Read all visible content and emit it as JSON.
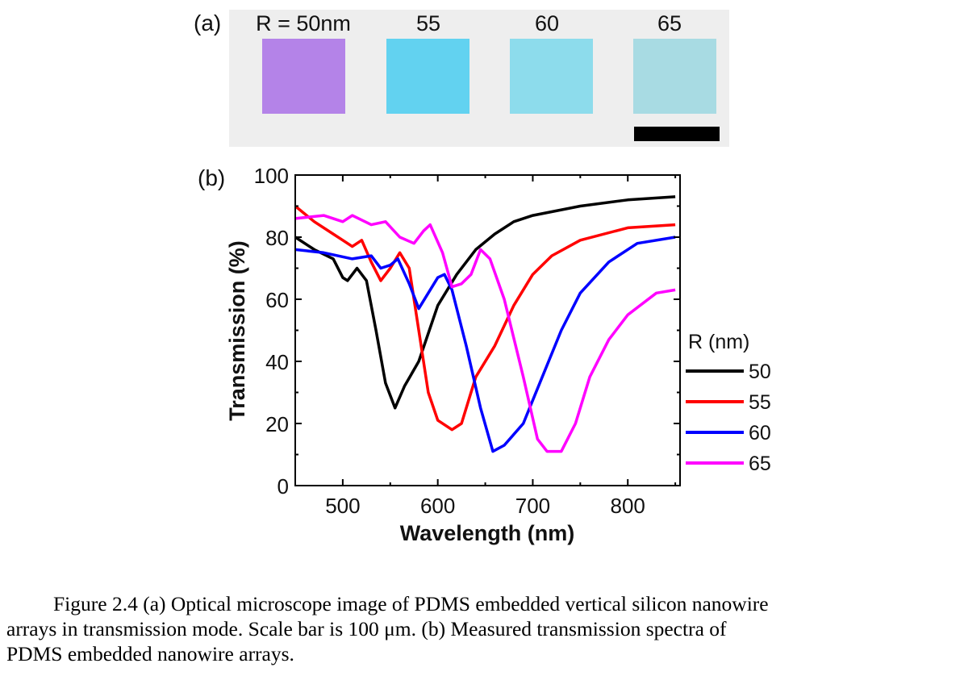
{
  "panel_a": {
    "label": "(a)",
    "sample_labels": [
      "R = 50nm",
      "55",
      "60",
      "65"
    ],
    "sample_colors": [
      "#b483e8",
      "#62d2f0",
      "#8ddcec",
      "#a8dbe3"
    ],
    "background_color": "#eeeeee"
  },
  "panel_b": {
    "label": "(b)"
  },
  "chart_data": {
    "type": "line",
    "xlabel": "Wavelength (nm)",
    "ylabel": "Transmission (%)",
    "xlim": [
      450,
      855
    ],
    "ylim": [
      0,
      100
    ],
    "xticks": [
      500,
      600,
      700,
      800
    ],
    "yticks": [
      0,
      20,
      40,
      60,
      80,
      100
    ],
    "grid": false,
    "legend_title": "R (nm)",
    "legend_position": "right",
    "series": [
      {
        "name": "50",
        "color": "#000000",
        "x": [
          450,
          470,
          490,
          500,
          505,
          515,
          525,
          535,
          545,
          555,
          565,
          580,
          600,
          620,
          640,
          660,
          680,
          700,
          750,
          800,
          850
        ],
        "y": [
          80,
          76,
          73,
          67,
          66,
          70,
          66,
          50,
          33,
          25,
          32,
          40,
          58,
          68,
          76,
          81,
          85,
          87,
          90,
          92,
          93
        ]
      },
      {
        "name": "55",
        "color": "#ff0000",
        "x": [
          450,
          470,
          490,
          500,
          510,
          520,
          530,
          540,
          550,
          560,
          570,
          580,
          590,
          600,
          615,
          625,
          640,
          660,
          680,
          700,
          720,
          750,
          800,
          850
        ],
        "y": [
          90,
          85,
          81,
          79,
          77,
          79,
          72,
          66,
          70,
          75,
          70,
          50,
          30,
          21,
          18,
          20,
          35,
          45,
          58,
          68,
          74,
          79,
          83,
          84
        ]
      },
      {
        "name": "60",
        "color": "#0000ff",
        "x": [
          450,
          480,
          510,
          530,
          540,
          550,
          558,
          570,
          580,
          590,
          600,
          607,
          615,
          630,
          645,
          658,
          670,
          690,
          710,
          730,
          750,
          780,
          810,
          850
        ],
        "y": [
          76,
          75,
          73,
          74,
          70,
          71,
          73,
          65,
          57,
          62,
          67,
          68,
          63,
          45,
          25,
          11,
          13,
          20,
          35,
          50,
          62,
          72,
          78,
          80
        ]
      },
      {
        "name": "65",
        "color": "#ff00ff",
        "x": [
          450,
          480,
          500,
          510,
          530,
          545,
          560,
          575,
          585,
          592,
          605,
          615,
          625,
          635,
          645,
          655,
          670,
          690,
          705,
          715,
          730,
          745,
          760,
          780,
          800,
          830,
          850
        ],
        "y": [
          86,
          87,
          85,
          87,
          84,
          85,
          80,
          78,
          82,
          84,
          75,
          64,
          65,
          68,
          76,
          73,
          60,
          35,
          15,
          11,
          11,
          20,
          35,
          47,
          55,
          62,
          63
        ]
      }
    ]
  },
  "caption": {
    "line1": "Figure 2.4 (a) Optical microscope image of PDMS embedded vertical silicon nanowire",
    "line2": "arrays in transmission mode. Scale bar is 100 μm. (b) Measured transmission spectra of",
    "line3": "PDMS embedded nanowire arrays."
  }
}
